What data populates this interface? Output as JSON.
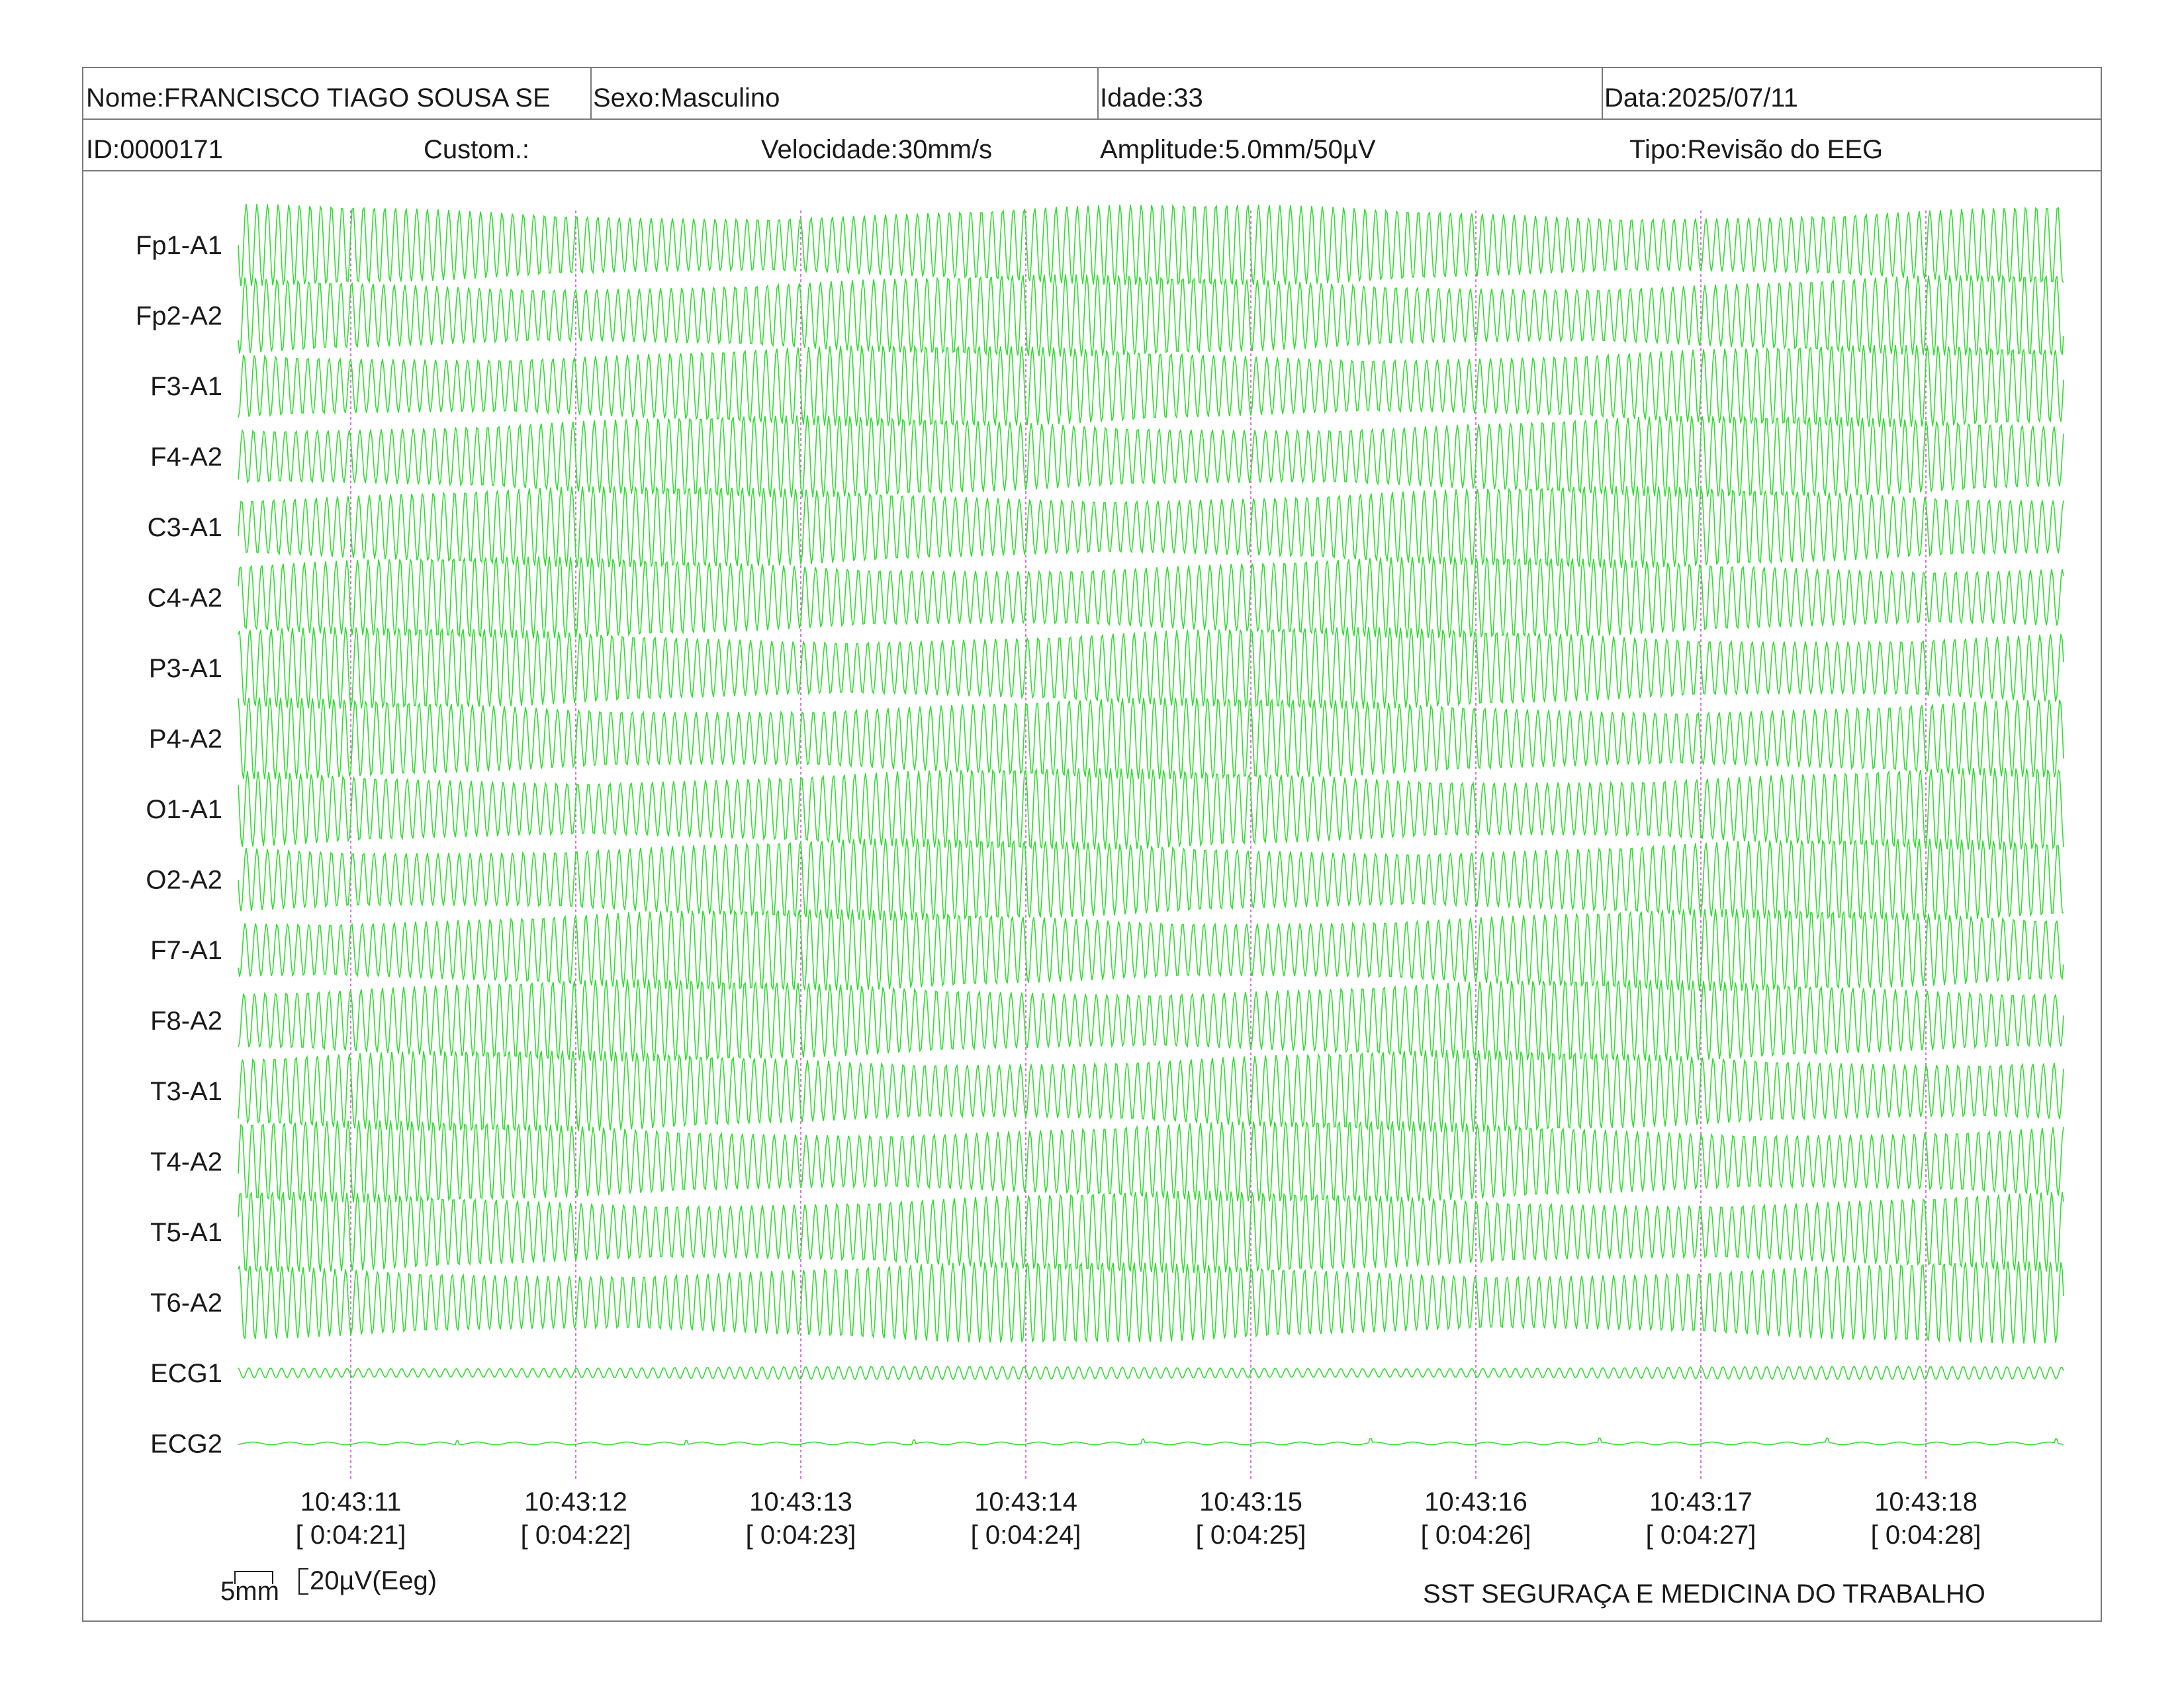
{
  "header": {
    "nome": "Nome:FRANCISCO TIAGO SOUSA SE",
    "sexo": "Sexo:Masculino",
    "idade": "Idade:33",
    "data": "Data:2025/07/11",
    "id": "ID:0000171",
    "custom": "Custom.:",
    "velocidade": "Velocidade:30mm/s",
    "amplitude": "Amplitude:5.0mm/50µV",
    "tipo": "Tipo:Revisão do EEG"
  },
  "channels": [
    "Fp1-A1",
    "Fp2-A2",
    "F3-A1",
    "F4-A2",
    "C3-A1",
    "C4-A2",
    "P3-A1",
    "P4-A2",
    "O1-A1",
    "O2-A2",
    "F7-A1",
    "F8-A2",
    "T3-A1",
    "T4-A2",
    "T5-A1",
    "T6-A2",
    "ECG1",
    "ECG2"
  ],
  "time_markers": [
    {
      "clock": "10:43:11",
      "elapsed": "[ 0:04:21]"
    },
    {
      "clock": "10:43:12",
      "elapsed": "[ 0:04:22]"
    },
    {
      "clock": "10:43:13",
      "elapsed": "[ 0:04:23]"
    },
    {
      "clock": "10:43:14",
      "elapsed": "[ 0:04:24]"
    },
    {
      "clock": "10:43:15",
      "elapsed": "[ 0:04:25]"
    },
    {
      "clock": "10:43:16",
      "elapsed": "[ 0:04:26]"
    },
    {
      "clock": "10:43:17",
      "elapsed": "[ 0:04:27]"
    },
    {
      "clock": "10:43:18",
      "elapsed": "[ 0:04:28]"
    }
  ],
  "scale": {
    "time_label": "5mm",
    "amplitude_label": "20µV(Eeg)"
  },
  "footer": {
    "company": "SST SEGURAÇA E MEDICINA DO TRABALHO"
  },
  "colors": {
    "trace": "#33dd33",
    "marker": "#cc44cc",
    "border": "#7a7a7a"
  }
}
